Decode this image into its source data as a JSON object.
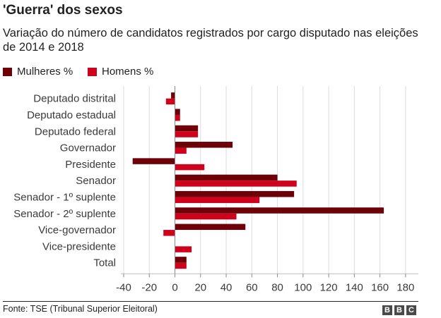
{
  "header": {
    "title": "'Guerra' dos sexos",
    "subtitle": "Variação do número de candidatos registrados por cargo disputado nas eleições de 2014 e 2018"
  },
  "legend": [
    {
      "label": "Mulheres %",
      "color": "#6e0008"
    },
    {
      "label": "Homens %",
      "color": "#d0021b"
    }
  ],
  "chart_data": {
    "type": "bar",
    "orientation": "horizontal",
    "title": "'Guerra' dos sexos",
    "xlabel": "",
    "ylabel": "",
    "xlim": [
      -40,
      190
    ],
    "xticks": [
      -40,
      -20,
      0,
      20,
      40,
      60,
      80,
      100,
      120,
      140,
      160,
      180
    ],
    "grid": true,
    "legend_position": "top-left",
    "categories": [
      "Deputado distrital",
      "Deputado estadual",
      "Deputado federal",
      "Governador",
      "Presidente",
      "Senador",
      "Senador - 1º suplente",
      "Senador - 2º suplente",
      "Vice-governador",
      "Vice-presidente",
      "Total"
    ],
    "series": [
      {
        "name": "Mulheres %",
        "color": "#6e0008",
        "values": [
          -3,
          4,
          18,
          45,
          -33,
          80,
          93,
          163,
          55,
          0,
          9
        ]
      },
      {
        "name": "Homens %",
        "color": "#d0021b",
        "values": [
          -7,
          4,
          18,
          9,
          23,
          95,
          66,
          48,
          -9,
          13,
          9
        ]
      }
    ]
  },
  "footer": {
    "source": "Fonte: TSE (Tribunal Superior Eleitoral)",
    "logo": [
      "B",
      "B",
      "C"
    ]
  }
}
